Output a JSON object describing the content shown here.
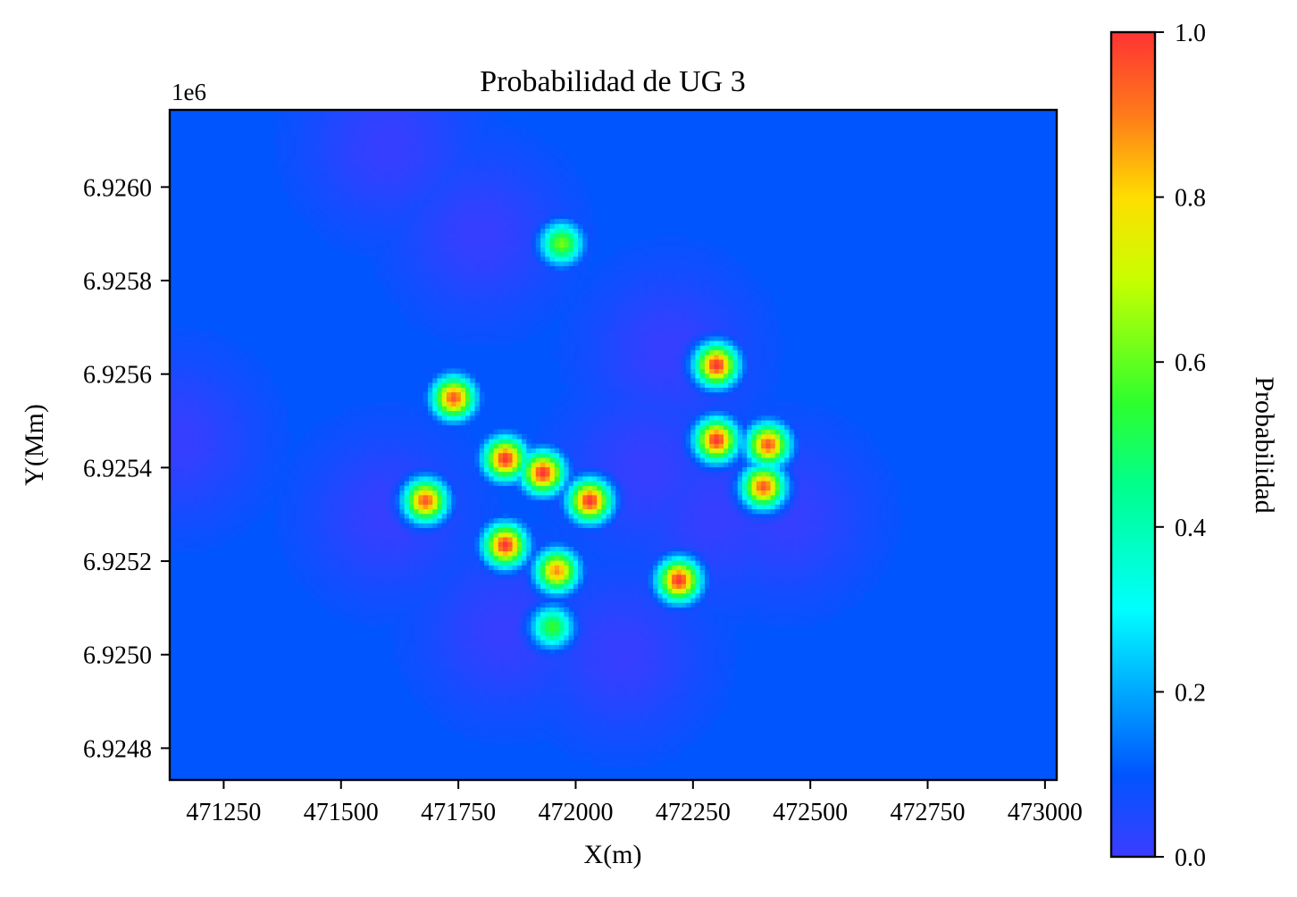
{
  "chart_data": {
    "type": "heatmap",
    "title": "Probabilidad de UG 3",
    "xlabel": "X(m)",
    "ylabel": "Y(Mm)",
    "y_offset_text": "1e6",
    "xlim": [
      471135,
      473025
    ],
    "ylim": [
      6924732,
      6926165
    ],
    "xticks": [
      471250,
      471500,
      471750,
      472000,
      472250,
      472500,
      472750,
      473000
    ],
    "xtick_labels": [
      "471250",
      "471500",
      "471750",
      "472000",
      "472250",
      "472500",
      "472750",
      "473000"
    ],
    "yticks": [
      6924800,
      6925000,
      6925200,
      6925400,
      6925600,
      6925800,
      6926000
    ],
    "ytick_labels": [
      "6.9248",
      "6.9250",
      "6.9252",
      "6.9254",
      "6.9256",
      "6.9258",
      "6.9260"
    ],
    "colorbar": {
      "label": "Probabilidad",
      "range": [
        0,
        1
      ],
      "ticks": [
        0.0,
        0.2,
        0.4,
        0.6,
        0.8,
        1.0
      ],
      "tick_labels": [
        "0.0",
        "0.2",
        "0.4",
        "0.6",
        "0.8",
        "1.0"
      ],
      "colormap": "gist_rainbow_r",
      "color_stops": [
        {
          "v": 0.0,
          "color": "#3c3cff"
        },
        {
          "v": 0.1,
          "color": "#0055ff"
        },
        {
          "v": 0.2,
          "color": "#00a8ff"
        },
        {
          "v": 0.3,
          "color": "#00ffff"
        },
        {
          "v": 0.45,
          "color": "#00ff8c"
        },
        {
          "v": 0.55,
          "color": "#2eff2e"
        },
        {
          "v": 0.7,
          "color": "#c8ff00"
        },
        {
          "v": 0.8,
          "color": "#ffdd00"
        },
        {
          "v": 0.9,
          "color": "#ff7a1a"
        },
        {
          "v": 1.0,
          "color": "#ff3333"
        }
      ]
    },
    "background_value": 0.1,
    "hotspots": [
      {
        "x": 471970,
        "y": 6925880,
        "peak": 0.62
      },
      {
        "x": 471740,
        "y": 6925550,
        "peak": 0.95
      },
      {
        "x": 471850,
        "y": 6925420,
        "peak": 1.0
      },
      {
        "x": 471930,
        "y": 6925390,
        "peak": 1.0
      },
      {
        "x": 472030,
        "y": 6925330,
        "peak": 1.0
      },
      {
        "x": 471680,
        "y": 6925330,
        "peak": 0.95
      },
      {
        "x": 471850,
        "y": 6925235,
        "peak": 1.0
      },
      {
        "x": 471960,
        "y": 6925180,
        "peak": 0.88
      },
      {
        "x": 471950,
        "y": 6925060,
        "peak": 0.55
      },
      {
        "x": 472300,
        "y": 6925620,
        "peak": 1.0
      },
      {
        "x": 472300,
        "y": 6925460,
        "peak": 1.0
      },
      {
        "x": 472410,
        "y": 6925450,
        "peak": 0.95
      },
      {
        "x": 472400,
        "y": 6925360,
        "peak": 0.95
      },
      {
        "x": 472220,
        "y": 6925160,
        "peak": 1.0
      }
    ],
    "low_patches": [
      {
        "x": 472150,
        "y": 6925400
      },
      {
        "x": 472300,
        "y": 6925300
      },
      {
        "x": 472450,
        "y": 6925300
      },
      {
        "x": 471600,
        "y": 6925300
      },
      {
        "x": 471850,
        "y": 6925050
      },
      {
        "x": 472100,
        "y": 6925000
      },
      {
        "x": 471800,
        "y": 6925900
      },
      {
        "x": 472200,
        "y": 6925650
      },
      {
        "x": 471150,
        "y": 6925460
      },
      {
        "x": 471600,
        "y": 6926090
      }
    ],
    "grid": false
  }
}
